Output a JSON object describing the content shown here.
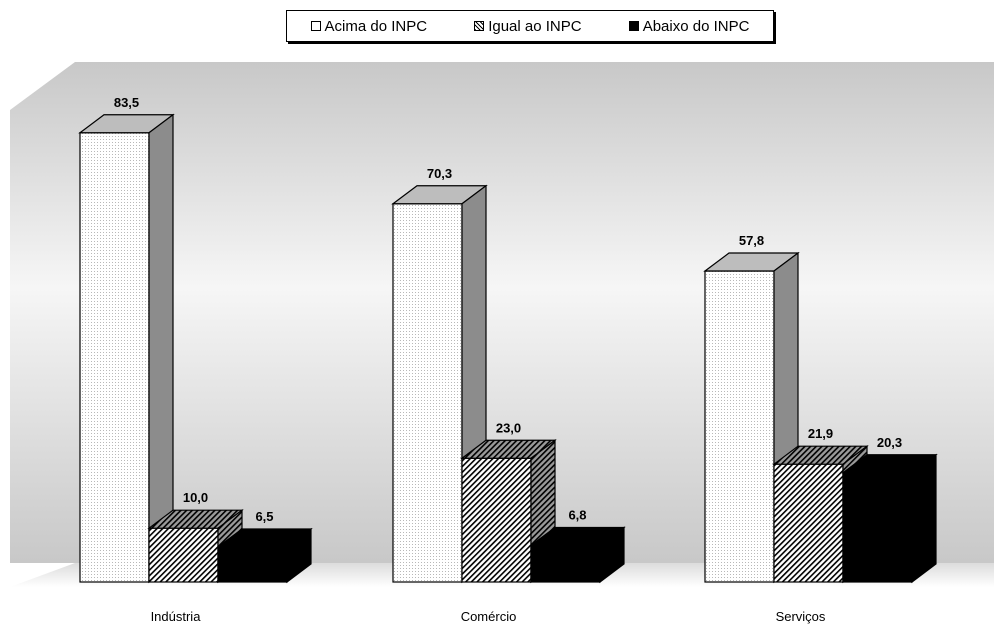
{
  "chart_data": {
    "type": "bar",
    "categories": [
      "Indústria",
      "Comércio",
      "Serviços"
    ],
    "series": [
      {
        "name": "Acima do INPC",
        "values": [
          83.5,
          70.3,
          57.8
        ]
      },
      {
        "name": "Igual ao INPC",
        "values": [
          10.0,
          23.0,
          21.9
        ]
      },
      {
        "name": "Abaixo do INPC",
        "values": [
          6.5,
          6.8,
          20.3
        ]
      }
    ],
    "data_labels": [
      [
        "83,5",
        "10,0",
        "6,5"
      ],
      [
        "70,3",
        "23,0",
        "6,8"
      ],
      [
        "57,8",
        "21,9",
        "20,3"
      ]
    ],
    "ylim": [
      0,
      100
    ],
    "grid": false,
    "legend_position": "top-center",
    "style": "3d-column",
    "colors": {
      "acima": "#ffffff",
      "igual": "hatched",
      "abaixo": "#000000",
      "wall": "#d9d9d9"
    }
  }
}
